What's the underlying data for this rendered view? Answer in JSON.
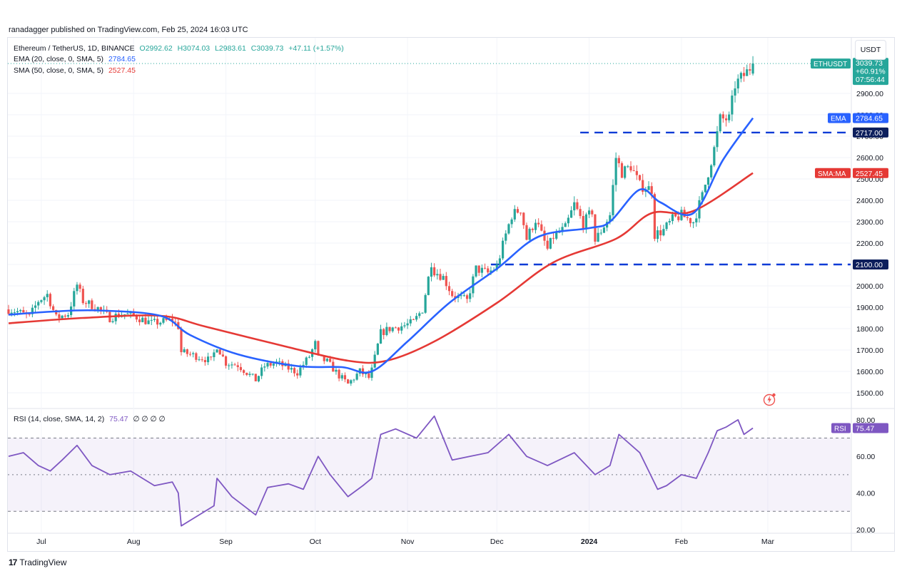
{
  "header": {
    "published": "ranadagger published on TradingView.com, Feb 25, 2024 16:03 UTC"
  },
  "legend": {
    "symbol": "Ethereum / TetherUS, 1D, BINANCE",
    "open": "O2992.62",
    "high": "H3074.03",
    "low": "L2983.61",
    "close": "C3039.73",
    "change": "+47.11 (+1.57%)",
    "ema_label": "EMA (20, close, 0, SMA, 5)",
    "ema_value": "2784.65",
    "sma_label": "SMA (50, close, 0, SMA, 5)",
    "sma_value": "2527.45",
    "rsi_label": "RSI (14, close, SMA, 14, 2)",
    "rsi_value": "75.47",
    "rsi_extra": "∅ ∅ ∅ ∅"
  },
  "currency_button": "USDT",
  "price_tags": {
    "symbol_tag": "ETHUSDT",
    "price": "3039.73",
    "pct": "+60.91%",
    "countdown": "07:56:44",
    "ema_tag": "EMA",
    "ema_price": "2784.65",
    "res_price": "2717.00",
    "sma_tag": "SMA:MA",
    "sma_price": "2527.45",
    "sup_price": "2100.00",
    "rsi_tag": "RSI",
    "rsi_price": "75.47"
  },
  "brand": {
    "name": "TradingView"
  },
  "colors": {
    "up": "#26a69a",
    "down": "#ef5350",
    "ema": "#2962ff",
    "sma": "#e53935",
    "rsi": "#7e57c2",
    "level": "#0d3bd6"
  },
  "chart_data": [
    {
      "type": "candlestick",
      "title": "Ethereum / TetherUS, 1D, BINANCE",
      "x_labels": [
        "Jul",
        "Aug",
        "Sep",
        "Oct",
        "Nov",
        "Dec",
        "2024",
        "Feb",
        "Mar"
      ],
      "y_ticks": [
        "1500.00",
        "1600.00",
        "1700.00",
        "1800.00",
        "1900.00",
        "2000.00",
        "2100.00",
        "2200.00",
        "2300.00",
        "2400.00",
        "2500.00",
        "2600.00",
        "2700.00",
        "2800.00",
        "2900.00"
      ],
      "ylim": [
        1450,
        3090
      ],
      "close_anchors": [
        [
          "2023-06-20",
          1890
        ],
        [
          "2023-06-23",
          1880
        ],
        [
          "2023-06-27",
          1855
        ],
        [
          "2023-06-30",
          1930
        ],
        [
          "2023-07-03",
          1960
        ],
        [
          "2023-07-06",
          1850
        ],
        [
          "2023-07-10",
          1870
        ],
        [
          "2023-07-13",
          2005
        ],
        [
          "2023-07-15",
          1930
        ],
        [
          "2023-07-20",
          1895
        ],
        [
          "2023-07-24",
          1850
        ],
        [
          "2023-07-28",
          1870
        ],
        [
          "2023-08-01",
          1860
        ],
        [
          "2023-08-07",
          1825
        ],
        [
          "2023-08-14",
          1840
        ],
        [
          "2023-08-16",
          1810
        ],
        [
          "2023-08-17",
          1690
        ],
        [
          "2023-08-20",
          1680
        ],
        [
          "2023-08-27",
          1650
        ],
        [
          "2023-08-29",
          1720
        ],
        [
          "2023-09-01",
          1640
        ],
        [
          "2023-09-05",
          1630
        ],
        [
          "2023-09-11",
          1560
        ],
        [
          "2023-09-14",
          1625
        ],
        [
          "2023-09-18",
          1640
        ],
        [
          "2023-09-25",
          1595
        ],
        [
          "2023-09-29",
          1670
        ],
        [
          "2023-10-01",
          1730
        ],
        [
          "2023-10-02",
          1665
        ],
        [
          "2023-10-05",
          1645
        ],
        [
          "2023-10-09",
          1580
        ],
        [
          "2023-10-12",
          1540
        ],
        [
          "2023-10-16",
          1600
        ],
        [
          "2023-10-19",
          1570
        ],
        [
          "2023-10-20",
          1605
        ],
        [
          "2023-10-23",
          1780
        ],
        [
          "2023-10-26",
          1800
        ],
        [
          "2023-10-31",
          1815
        ],
        [
          "2023-11-03",
          1830
        ],
        [
          "2023-11-06",
          1890
        ],
        [
          "2023-11-09",
          2110
        ],
        [
          "2023-11-10",
          2070
        ],
        [
          "2023-11-13",
          2040
        ],
        [
          "2023-11-16",
          1960
        ],
        [
          "2023-11-21",
          1930
        ],
        [
          "2023-11-24",
          2080
        ],
        [
          "2023-11-28",
          2060
        ],
        [
          "2023-12-01",
          2090
        ],
        [
          "2023-12-04",
          2240
        ],
        [
          "2023-12-06",
          2330
        ],
        [
          "2023-12-09",
          2360
        ],
        [
          "2023-12-11",
          2220
        ],
        [
          "2023-12-14",
          2310
        ],
        [
          "2023-12-18",
          2170
        ],
        [
          "2023-12-20",
          2230
        ],
        [
          "2023-12-24",
          2270
        ],
        [
          "2023-12-27",
          2380
        ],
        [
          "2023-12-30",
          2290
        ],
        [
          "2024-01-02",
          2350
        ],
        [
          "2024-01-03",
          2210
        ],
        [
          "2024-01-08",
          2330
        ],
        [
          "2024-01-10",
          2600
        ],
        [
          "2024-01-12",
          2530
        ],
        [
          "2024-01-15",
          2560
        ],
        [
          "2024-01-18",
          2470
        ],
        [
          "2024-01-22",
          2450
        ],
        [
          "2024-01-23",
          2240
        ],
        [
          "2024-01-26",
          2260
        ],
        [
          "2024-01-29",
          2310
        ],
        [
          "2024-02-01",
          2330
        ],
        [
          "2024-02-05",
          2300
        ],
        [
          "2024-02-08",
          2420
        ],
        [
          "2024-02-12",
          2640
        ],
        [
          "2024-02-14",
          2780
        ],
        [
          "2024-02-17",
          2780
        ],
        [
          "2024-02-19",
          2940
        ],
        [
          "2024-02-21",
          2970
        ],
        [
          "2024-02-23",
          3000
        ],
        [
          "2024-02-25",
          3039.73
        ]
      ],
      "ema20_anchors": [
        [
          "2023-06-20",
          1865
        ],
        [
          "2023-07-05",
          1880
        ],
        [
          "2023-07-20",
          1885
        ],
        [
          "2023-08-10",
          1860
        ],
        [
          "2023-08-20",
          1770
        ],
        [
          "2023-09-05",
          1680
        ],
        [
          "2023-09-25",
          1625
        ],
        [
          "2023-10-10",
          1620
        ],
        [
          "2023-10-20",
          1600
        ],
        [
          "2023-11-01",
          1740
        ],
        [
          "2023-11-15",
          1920
        ],
        [
          "2023-12-01",
          2080
        ],
        [
          "2023-12-15",
          2230
        ],
        [
          "2024-01-01",
          2270
        ],
        [
          "2024-01-08",
          2300
        ],
        [
          "2024-01-18",
          2450
        ],
        [
          "2024-01-25",
          2390
        ],
        [
          "2024-02-05",
          2340
        ],
        [
          "2024-02-15",
          2590
        ],
        [
          "2024-02-25",
          2784.65
        ]
      ],
      "sma50_anchors": [
        [
          "2023-06-20",
          1825
        ],
        [
          "2023-07-15",
          1850
        ],
        [
          "2023-08-10",
          1860
        ],
        [
          "2023-08-25",
          1810
        ],
        [
          "2023-09-20",
          1720
        ],
        [
          "2023-10-12",
          1650
        ],
        [
          "2023-10-25",
          1650
        ],
        [
          "2023-11-10",
          1740
        ],
        [
          "2023-12-01",
          1920
        ],
        [
          "2023-12-20",
          2110
        ],
        [
          "2024-01-10",
          2220
        ],
        [
          "2024-01-22",
          2340
        ],
        [
          "2024-02-05",
          2350
        ],
        [
          "2024-02-25",
          2527.45
        ]
      ],
      "levels": [
        2717.0,
        2100.0
      ]
    },
    {
      "type": "line",
      "title": "RSI (14, close, SMA, 14, 2)",
      "y_ticks": [
        "20.00",
        "40.00",
        "60.00",
        "80.00"
      ],
      "ylim": [
        18,
        85
      ],
      "band": [
        30,
        70
      ],
      "values": [
        [
          "2023-06-20",
          60
        ],
        [
          "2023-06-25",
          62
        ],
        [
          "2023-06-30",
          55
        ],
        [
          "2023-07-04",
          52
        ],
        [
          "2023-07-08",
          58
        ],
        [
          "2023-07-13",
          66
        ],
        [
          "2023-07-18",
          55
        ],
        [
          "2023-07-24",
          50
        ],
        [
          "2023-07-31",
          52
        ],
        [
          "2023-08-08",
          44
        ],
        [
          "2023-08-14",
          46
        ],
        [
          "2023-08-16",
          40
        ],
        [
          "2023-08-17",
          22
        ],
        [
          "2023-08-20",
          25
        ],
        [
          "2023-08-28",
          33
        ],
        [
          "2023-08-29",
          48
        ],
        [
          "2023-09-03",
          38
        ],
        [
          "2023-09-11",
          28
        ],
        [
          "2023-09-15",
          43
        ],
        [
          "2023-09-22",
          45
        ],
        [
          "2023-09-27",
          42
        ],
        [
          "2023-10-02",
          60
        ],
        [
          "2023-10-06",
          50
        ],
        [
          "2023-10-12",
          38
        ],
        [
          "2023-10-17",
          44
        ],
        [
          "2023-10-20",
          48
        ],
        [
          "2023-10-23",
          72
        ],
        [
          "2023-10-28",
          75
        ],
        [
          "2023-11-04",
          70
        ],
        [
          "2023-11-10",
          82
        ],
        [
          "2023-11-16",
          58
        ],
        [
          "2023-11-22",
          60
        ],
        [
          "2023-11-28",
          62
        ],
        [
          "2023-12-05",
          72
        ],
        [
          "2023-12-11",
          60
        ],
        [
          "2023-12-18",
          55
        ],
        [
          "2023-12-27",
          62
        ],
        [
          "2024-01-03",
          50
        ],
        [
          "2024-01-08",
          55
        ],
        [
          "2024-01-11",
          72
        ],
        [
          "2024-01-18",
          62
        ],
        [
          "2024-01-24",
          42
        ],
        [
          "2024-01-27",
          44
        ],
        [
          "2024-02-01",
          50
        ],
        [
          "2024-02-06",
          48
        ],
        [
          "2024-02-10",
          62
        ],
        [
          "2024-02-13",
          74
        ],
        [
          "2024-02-16",
          76
        ],
        [
          "2024-02-19",
          79
        ],
        [
          "2024-02-20",
          80
        ],
        [
          "2024-02-22",
          72
        ],
        [
          "2024-02-25",
          75.47
        ]
      ]
    }
  ]
}
